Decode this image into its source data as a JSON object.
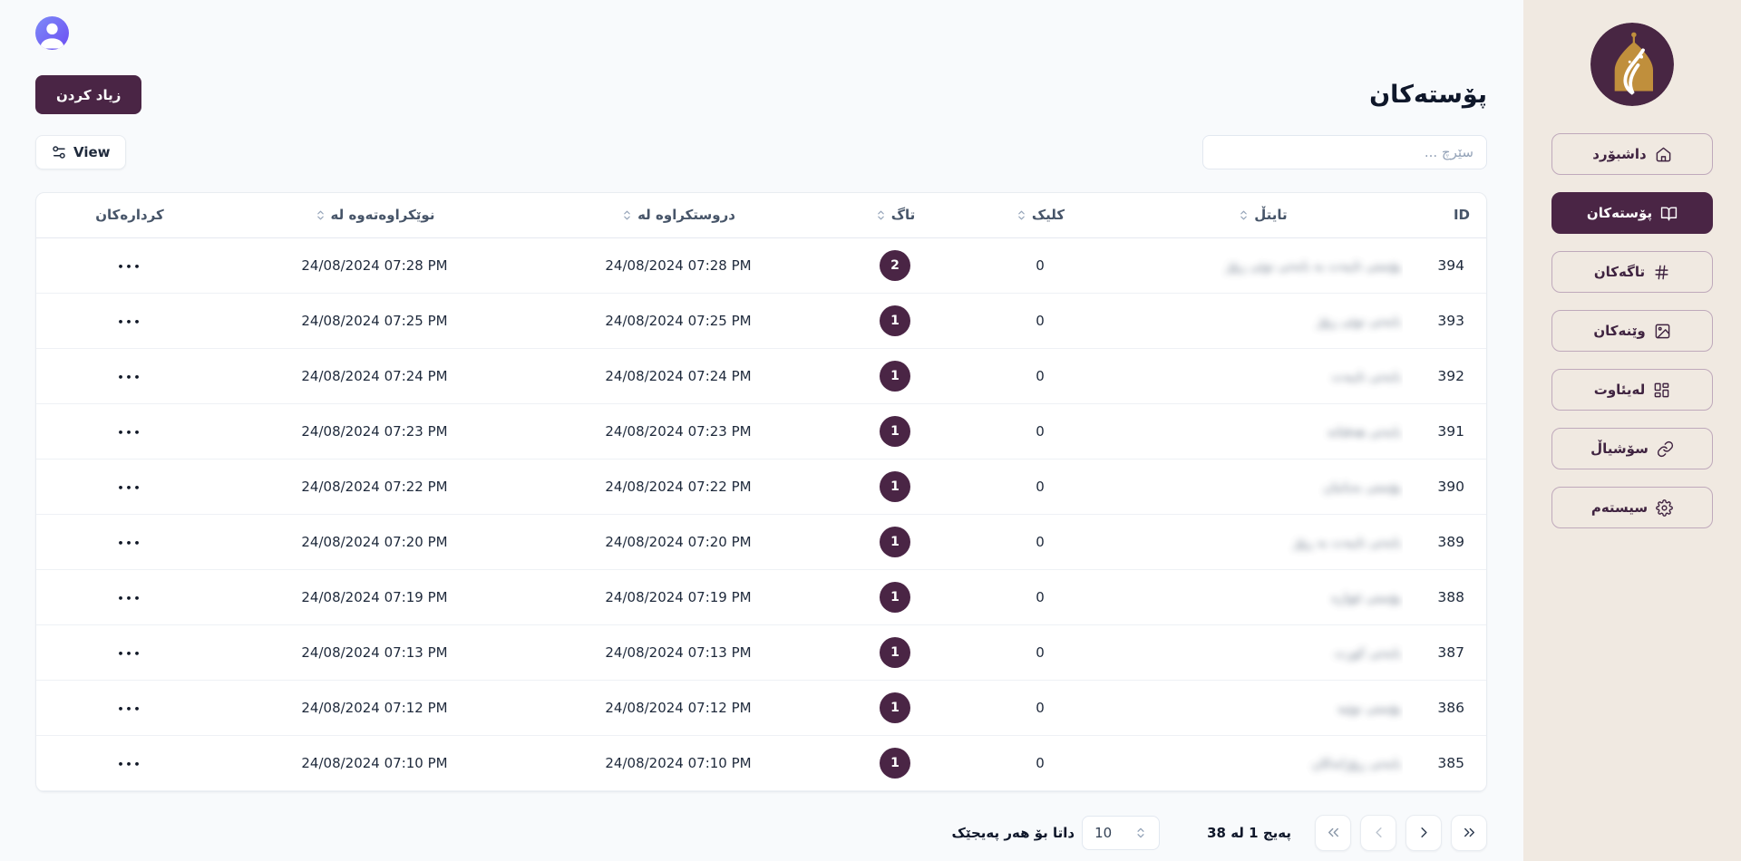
{
  "page": {
    "title": "پۆستەکان",
    "add_button_label": "زیاد کردن",
    "view_button_label": "View",
    "search_placeholder": "سێرچ ..."
  },
  "sidebar": {
    "items": [
      {
        "key": "dashboard",
        "label": "داشبۆرد",
        "icon": "home-icon",
        "active": false
      },
      {
        "key": "posts",
        "label": "پۆستەکان",
        "icon": "book-open-icon",
        "active": true
      },
      {
        "key": "tags",
        "label": "تاگەکان",
        "icon": "hash-icon",
        "active": false
      },
      {
        "key": "images",
        "label": "وێنەکان",
        "icon": "image-icon",
        "active": false
      },
      {
        "key": "layout",
        "label": "لەیئاوت",
        "icon": "layout-icon",
        "active": false
      },
      {
        "key": "social",
        "label": "سۆشیاڵ",
        "icon": "link-icon",
        "active": false
      },
      {
        "key": "system",
        "label": "سیستەم",
        "icon": "gear-icon",
        "active": false
      }
    ]
  },
  "table": {
    "headers": {
      "id": "ID",
      "title": "تایتڵ",
      "clicks": "کلیک",
      "tags": "تاگ",
      "created": "دروستکراوە لە",
      "updated": "نوێکراوەتەوە لە",
      "actions": "کردارەکان"
    },
    "rows": [
      {
        "id": "394",
        "title_masked": "پۆستی تایبەت بە بابەتی نوێی ڕۆژ",
        "clicks": "0",
        "tags": "2",
        "created": "24/08/2024 07:28 PM",
        "updated": "24/08/2024 07:28 PM",
        "actions": "•••"
      },
      {
        "id": "393",
        "title_masked": "بابەتی نوێی ڕۆژ",
        "clicks": "0",
        "tags": "1",
        "created": "24/08/2024 07:25 PM",
        "updated": "24/08/2024 07:25 PM",
        "actions": "•••"
      },
      {
        "id": "392",
        "title_masked": "بابەتی تایبەت",
        "clicks": "0",
        "tags": "1",
        "created": "24/08/2024 07:24 PM",
        "updated": "24/08/2024 07:24 PM",
        "actions": "•••"
      },
      {
        "id": "391",
        "title_masked": "بابەتی هەفتانە",
        "clicks": "0",
        "tags": "1",
        "created": "24/08/2024 07:23 PM",
        "updated": "24/08/2024 07:23 PM",
        "actions": "•••"
      },
      {
        "id": "390",
        "title_masked": "پۆستی بەیانیان",
        "clicks": "0",
        "tags": "1",
        "created": "24/08/2024 07:22 PM",
        "updated": "24/08/2024 07:22 PM",
        "actions": "•••"
      },
      {
        "id": "389",
        "title_masked": "بابەتی تایبەت بە ڕۆژ",
        "clicks": "0",
        "tags": "1",
        "created": "24/08/2024 07:20 PM",
        "updated": "24/08/2024 07:20 PM",
        "actions": "•••"
      },
      {
        "id": "388",
        "title_masked": "پۆستی ئێوارە",
        "clicks": "0",
        "tags": "1",
        "created": "24/08/2024 07:19 PM",
        "updated": "24/08/2024 07:19 PM",
        "actions": "•••"
      },
      {
        "id": "387",
        "title_masked": "بابەتی کورت",
        "clicks": "0",
        "tags": "1",
        "created": "24/08/2024 07:13 PM",
        "updated": "24/08/2024 07:13 PM",
        "actions": "•••"
      },
      {
        "id": "386",
        "title_masked": "پۆستی نوێیە",
        "clicks": "0",
        "tags": "1",
        "created": "24/08/2024 07:12 PM",
        "updated": "24/08/2024 07:12 PM",
        "actions": "•••"
      },
      {
        "id": "385",
        "title_masked": "بابەتی ڕۆژانەکان",
        "clicks": "0",
        "tags": "1",
        "created": "24/08/2024 07:10 PM",
        "updated": "24/08/2024 07:10 PM",
        "actions": "•••"
      }
    ]
  },
  "pagination": {
    "per_page_label": "داتا بۆ هەر پەیجێک",
    "per_page_value": "10",
    "page_info": "پەیج 1 لە 38",
    "buttons": [
      {
        "key": "pager-end",
        "icon": "chevrons-right-icon",
        "tone": "dark"
      },
      {
        "key": "pager-next",
        "icon": "chevron-right-icon",
        "tone": "dark"
      },
      {
        "key": "pager-previous",
        "icon": "chevron-left-icon",
        "tone": "light"
      },
      {
        "key": "pager-start",
        "icon": "chevrons-left-icon",
        "tone": "gray"
      }
    ]
  },
  "colors": {
    "accent_purple": "#4a2545",
    "sidebar_bg": "#f0e9e1",
    "main_bg": "#f8fafc",
    "gold": "#c08f3c"
  }
}
